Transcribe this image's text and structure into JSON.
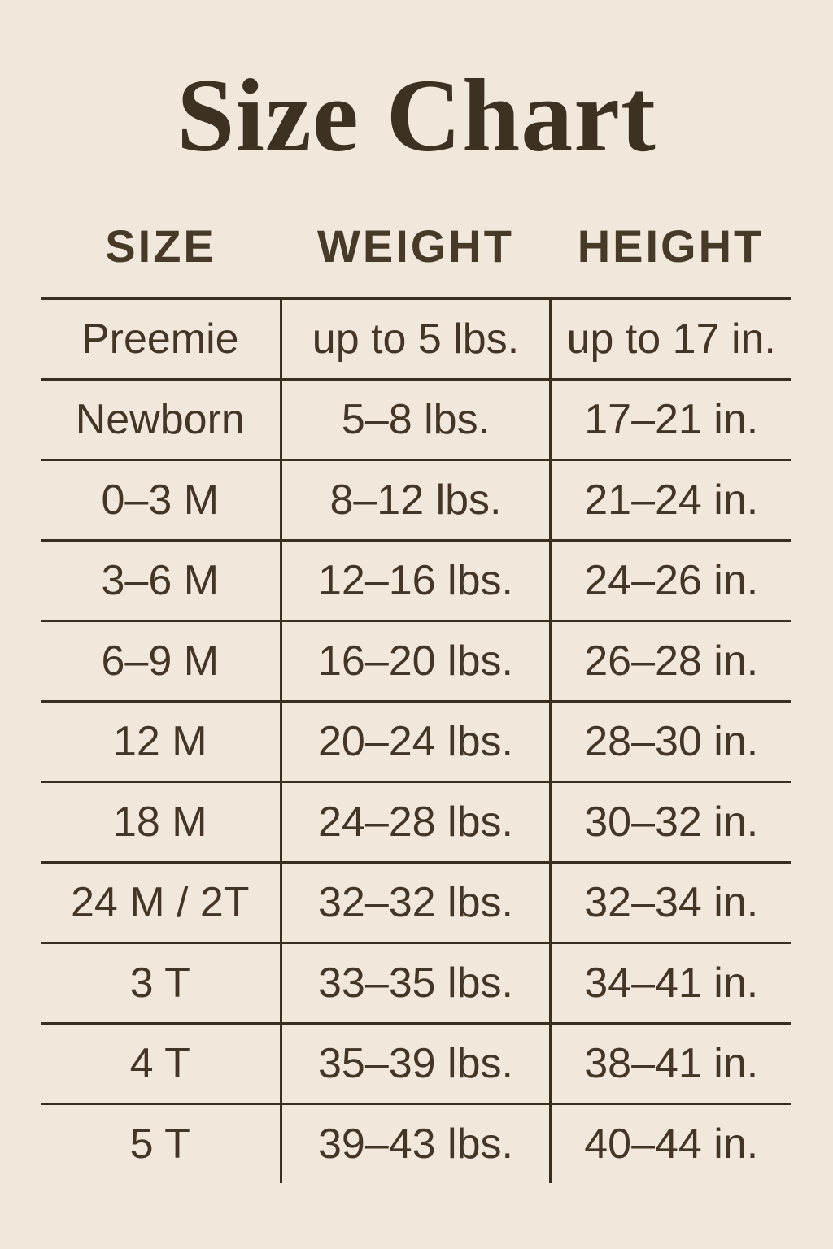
{
  "page": {
    "background_color": "#f1e8db",
    "text_color": "#443627",
    "line_color": "#3a2e21"
  },
  "title": "Size Chart",
  "table": {
    "headers": [
      "SIZE",
      "WEIGHT",
      "HEIGHT"
    ],
    "rows": [
      [
        "Preemie",
        "up to 5 lbs.",
        "up to 17 in."
      ],
      [
        "Newborn",
        "5–8 lbs.",
        "17–21 in."
      ],
      [
        "0–3 M",
        "8–12 lbs.",
        "21–24 in."
      ],
      [
        "3–6 M",
        "12–16 lbs.",
        "24–26 in."
      ],
      [
        "6–9 M",
        "16–20 lbs.",
        "26–28 in."
      ],
      [
        "12 M",
        "20–24 lbs.",
        "28–30 in."
      ],
      [
        "18 M",
        "24–28 lbs.",
        "30–32 in."
      ],
      [
        "24 M / 2T",
        "32–32 lbs.",
        "32–34 in."
      ],
      [
        "3 T",
        "33–35 lbs.",
        "34–41 in."
      ],
      [
        "4 T",
        "35–39 lbs.",
        "38–41 in."
      ],
      [
        "5 T",
        "39–43 lbs.",
        "40–44 in."
      ]
    ]
  },
  "chart_data": {
    "type": "table",
    "title": "Size Chart",
    "columns": [
      "SIZE",
      "WEIGHT",
      "HEIGHT"
    ],
    "rows": [
      {
        "size": "Preemie",
        "weight": "up to 5 lbs.",
        "height": "up to 17 in."
      },
      {
        "size": "Newborn",
        "weight": "5–8 lbs.",
        "height": "17–21 in."
      },
      {
        "size": "0–3 M",
        "weight": "8–12 lbs.",
        "height": "21–24 in."
      },
      {
        "size": "3–6 M",
        "weight": "12–16 lbs.",
        "height": "24–26 in."
      },
      {
        "size": "6–9 M",
        "weight": "16–20 lbs.",
        "height": "26–28 in."
      },
      {
        "size": "12 M",
        "weight": "20–24 lbs.",
        "height": "28–30 in."
      },
      {
        "size": "18 M",
        "weight": "24–28 lbs.",
        "height": "30–32 in."
      },
      {
        "size": "24 M / 2T",
        "weight": "32–32 lbs.",
        "height": "32–34 in."
      },
      {
        "size": "3 T",
        "weight": "33–35 lbs.",
        "height": "34–41 in."
      },
      {
        "size": "4 T",
        "weight": "35–39 lbs.",
        "height": "38–41 in."
      },
      {
        "size": "5 T",
        "weight": "39–43 lbs.",
        "height": "40–44 in."
      }
    ],
    "layout": {
      "header_row_separator": true,
      "row_separators": true,
      "column_separators_body_only": true,
      "outer_border": false
    }
  }
}
